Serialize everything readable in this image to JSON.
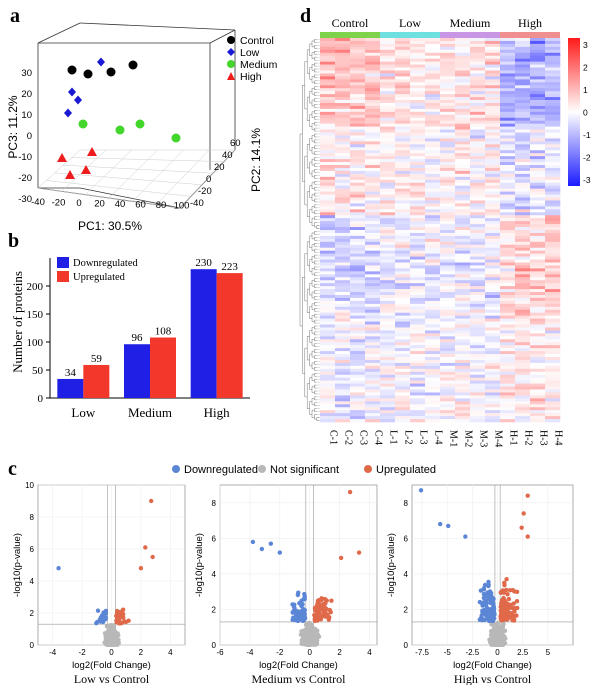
{
  "panels": {
    "a": "a",
    "b": "b",
    "c": "c",
    "d": "d"
  },
  "colors": {
    "control": "#000000",
    "low": "#1a1ad4",
    "medium": "#44d62c",
    "high": "#ee1c1c",
    "bar_down": "#1f1fe6",
    "bar_up": "#f2382a",
    "volcano_down": "#5b86d6",
    "volcano_ns": "#b8b8b8",
    "volcano_up": "#e0694a",
    "grp_control": "#7fd34a",
    "grp_low": "#6fe0e0",
    "grp_medium": "#c996e6",
    "grp_high": "#f08f8f"
  },
  "chart_data": [
    {
      "panel": "a",
      "type": "scatter",
      "xlabel": "PC1: 30.5%",
      "ylabel": "PC3: 11.2%",
      "zlabel": "PC2: 14.1%",
      "x_ticks": [
        "-40",
        "-20",
        "0",
        "20",
        "40",
        "60",
        "80",
        "100"
      ],
      "y_ticks": [
        "30",
        "20",
        "10",
        "0",
        "-10",
        "-20",
        "-30"
      ],
      "z_ticks": [
        "60",
        "40",
        "20",
        "0",
        "-20",
        "-40"
      ],
      "legend": [
        "Control",
        "Low",
        "Medium",
        "High"
      ],
      "legend_position": "top-right"
    },
    {
      "panel": "b",
      "type": "bar",
      "categories": [
        "Low",
        "Medium",
        "High"
      ],
      "series": [
        {
          "name": "Downregulated",
          "values": [
            34,
            96,
            230
          ]
        },
        {
          "name": "Upregulated",
          "values": [
            59,
            108,
            223
          ]
        }
      ],
      "ylabel": "Number of proteins",
      "ylim": [
        0,
        250
      ],
      "yticks": [
        0,
        50,
        100,
        150,
        200
      ],
      "legend_position": "top-left"
    },
    {
      "panel": "c",
      "type": "scatter",
      "legend": [
        "Downregulated",
        "Not significant",
        "Upregulated"
      ],
      "legend_position": "top",
      "ylabel": "-log10(p-value)",
      "xlabel": "log2(Fold Change)",
      "subplots": [
        {
          "title": "Low vs Control",
          "xlim": [
            -5,
            5
          ],
          "ylim": [
            0,
            10
          ],
          "xticks": [
            -4,
            -2,
            0,
            2,
            4
          ],
          "yticks": [
            0,
            2,
            4,
            6,
            8,
            10
          ]
        },
        {
          "title": "Medium vs Control",
          "xlim": [
            -6,
            4.5
          ],
          "ylim": [
            0,
            9
          ],
          "xticks": [
            -6,
            -4,
            -2,
            0,
            2,
            4
          ],
          "yticks": [
            0,
            2,
            4,
            6,
            8
          ]
        },
        {
          "title": "High vs Control",
          "xlim": [
            -8.5,
            7.5
          ],
          "ylim": [
            0,
            9
          ],
          "xticks": [
            -7.5,
            -5,
            -2.5,
            0,
            2.5,
            5
          ],
          "yticks": [
            0,
            2,
            4,
            6,
            8
          ]
        }
      ]
    },
    {
      "panel": "d",
      "type": "heatmap",
      "groups": [
        "Control",
        "Low",
        "Medium",
        "High"
      ],
      "columns": [
        "C-1",
        "C-2",
        "C-3",
        "C-4",
        "L-1",
        "L-2",
        "L-3",
        "L-4",
        "M-1",
        "M-2",
        "M-3",
        "M-4",
        "H-1",
        "H-2",
        "H-3",
        "H-4"
      ],
      "scale_ticks": [
        "3",
        "2",
        "1",
        "0",
        "-1",
        "-2",
        "-3"
      ],
      "value_range": [
        -3,
        3
      ]
    }
  ]
}
